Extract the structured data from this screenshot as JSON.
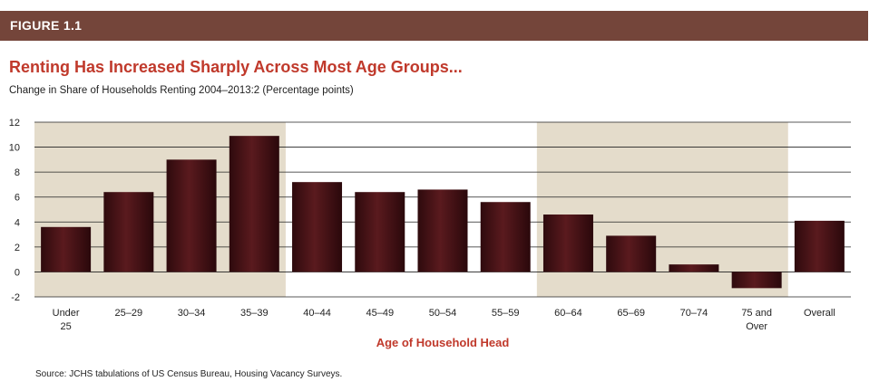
{
  "figure_label": "FIGURE 1.1",
  "source": "Source: JCHS tabulations of US Census Bureau, Housing Vacancy Surveys.",
  "colors": {
    "header_bar": "#74453a",
    "title": "#c0392b",
    "bar": "#5a1a1e",
    "shade": "#e4dccb"
  },
  "chart_data": {
    "type": "bar",
    "title": "Renting Has Increased Sharply Across Most Age Groups...",
    "subtitle": "Change in Share of Households Renting 2004–2013:2 (Percentage points)",
    "xlabel": "Age of Household Head",
    "ylabel": "",
    "ylim": [
      -2,
      12
    ],
    "yticks": [
      -2,
      0,
      2,
      4,
      6,
      8,
      10,
      12
    ],
    "grid": true,
    "categories": [
      [
        "Under",
        "25"
      ],
      [
        "25–29"
      ],
      [
        "30–34"
      ],
      [
        "35–39"
      ],
      [
        "40–44"
      ],
      [
        "45–49"
      ],
      [
        "50–54"
      ],
      [
        "55–59"
      ],
      [
        "60–64"
      ],
      [
        "65–69"
      ],
      [
        "70–74"
      ],
      [
        "75 and",
        "Over"
      ],
      [
        "Overall"
      ]
    ],
    "values": [
      3.6,
      6.4,
      9.0,
      10.9,
      7.2,
      6.4,
      6.6,
      5.6,
      4.6,
      2.9,
      0.6,
      -1.3,
      4.1
    ],
    "shaded_category_ranges": [
      [
        0,
        3
      ],
      [
        8,
        11
      ]
    ]
  }
}
